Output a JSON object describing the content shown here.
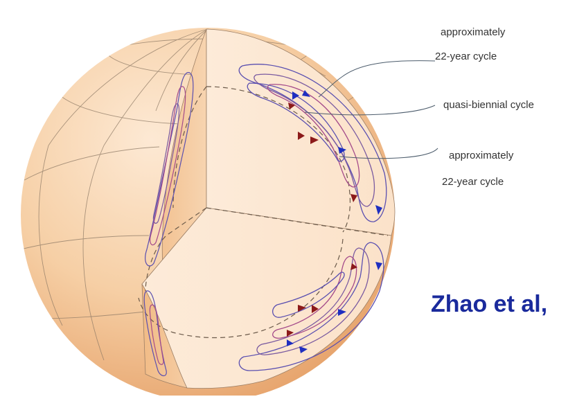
{
  "diagram": {
    "annotations": [
      {
        "line1": "approximately",
        "line2": "22-year cycle"
      },
      {
        "line1": "quasi-biennial cycle"
      },
      {
        "line1": "approximately",
        "line2": "22-year cycle"
      }
    ],
    "citation": "Zhao et al,"
  },
  "colors": {
    "sphere_light": "#fbe3c8",
    "sphere_mid": "#f6c99a",
    "sphere_dark": "#e9ab74",
    "cut_face": "#fde9d6",
    "contour_outer": "#5a4fb0",
    "contour_inner": "#a44a8a",
    "arrow_blue": "#1f2fc0",
    "arrow_red": "#8c1a1a",
    "leader_line": "#4a5a6a",
    "citation_text": "#1a2a9c"
  }
}
